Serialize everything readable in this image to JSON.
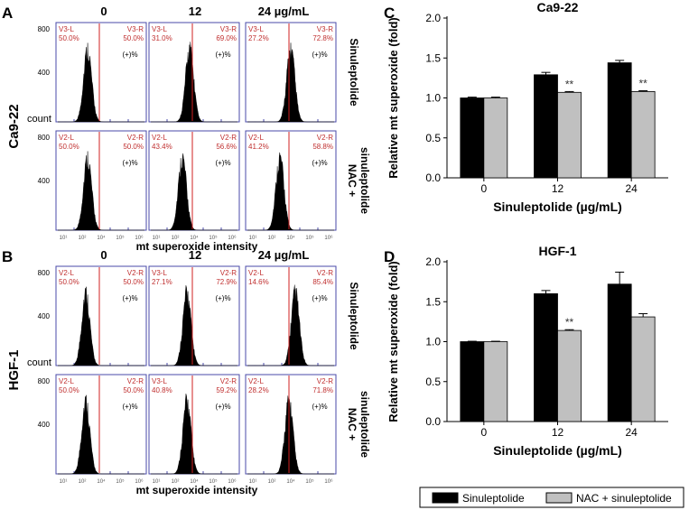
{
  "panels": {
    "A": "A",
    "B": "B",
    "C": "C",
    "D": "D"
  },
  "flow_common": {
    "count_label": "count",
    "xaxis_label": "mt superoxide intensity",
    "pos_label": "(+)%",
    "tick_400": "400",
    "tick_800": "800",
    "xticks": [
      "10¹",
      "10²",
      "10⁴",
      "10⁵",
      "10⁶"
    ],
    "dose_labels": [
      "0",
      "12",
      "24 µg/mL"
    ],
    "row_labels": [
      "Sinuleptolide",
      "NAC +",
      "sinuleptolide"
    ]
  },
  "flow_A": {
    "cell_line": "Ca9-22",
    "rows": [
      [
        {
          "l_label": "V3-L",
          "l_val": "50.0%",
          "r_label": "V3-R",
          "r_val": "50.0%",
          "peak": 0.35
        },
        {
          "l_label": "V3-L",
          "l_val": "31.0%",
          "r_label": "V3-R",
          "r_val": "69.0%",
          "peak": 0.45
        },
        {
          "l_label": "V3-L",
          "l_val": "27.2%",
          "r_label": "V3-R",
          "r_val": "72.8%",
          "peak": 0.5
        }
      ],
      [
        {
          "l_label": "V2-L",
          "l_val": "50.0%",
          "r_label": "V2-R",
          "r_val": "50.0%",
          "peak": 0.35
        },
        {
          "l_label": "V2-L",
          "l_val": "43.4%",
          "r_label": "V2-R",
          "r_val": "56.6%",
          "peak": 0.37
        },
        {
          "l_label": "V2-L",
          "l_val": "41.2%",
          "r_label": "V2-R",
          "r_val": "58.8%",
          "peak": 0.38
        }
      ]
    ]
  },
  "flow_B": {
    "cell_line": "HGF-1",
    "rows": [
      [
        {
          "l_label": "V2-L",
          "l_val": "50.0%",
          "r_label": "V2-R",
          "r_val": "50.0%",
          "peak": 0.33
        },
        {
          "l_label": "V3-L",
          "l_val": "27.1%",
          "r_label": "V2-R",
          "r_val": "72.9%",
          "peak": 0.42
        },
        {
          "l_label": "V2-L",
          "l_val": "14.6%",
          "r_label": "V2-R",
          "r_val": "85.4%",
          "peak": 0.55
        }
      ],
      [
        {
          "l_label": "V2-L",
          "l_val": "50.0%",
          "r_label": "V2-R",
          "r_val": "50.0%",
          "peak": 0.33
        },
        {
          "l_label": "V3-L",
          "l_val": "40.8%",
          "r_label": "V2-R",
          "r_val": "59.2%",
          "peak": 0.42
        },
        {
          "l_label": "V2-L",
          "l_val": "28.2%",
          "r_label": "V2-R",
          "r_val": "71.8%",
          "peak": 0.48
        }
      ]
    ]
  },
  "legend": {
    "items": [
      "Sinuleptolide",
      "NAC + sinuleptolide"
    ],
    "colors": [
      "#000000",
      "#c0c0c0"
    ]
  },
  "chart_data": [
    {
      "type": "bar",
      "panel": "C",
      "title": "Ca9-22",
      "xlabel": "Sinuleptolide (µg/mL)",
      "ylabel": "Relative mt superoxide (fold)",
      "categories": [
        "0",
        "12",
        "24"
      ],
      "ylim": [
        0,
        2.0
      ],
      "yticks": [
        "0.0",
        "0.5",
        "1.0",
        "1.5",
        "2.0"
      ],
      "series": [
        {
          "name": "Sinuleptolide",
          "values": [
            1.0,
            1.29,
            1.44
          ],
          "errors": [
            0.01,
            0.03,
            0.03
          ],
          "color": "#000000"
        },
        {
          "name": "NAC + sinuleptolide",
          "values": [
            1.0,
            1.07,
            1.08
          ],
          "errors": [
            0.01,
            0.01,
            0.01
          ],
          "color": "#c0c0c0"
        }
      ],
      "annotations": [
        "",
        "**",
        "**"
      ]
    },
    {
      "type": "bar",
      "panel": "D",
      "title": "HGF-1",
      "xlabel": "Sinuleptolide (µg/mL)",
      "ylabel": "Relative mt superoxide (fold)",
      "categories": [
        "0",
        "12",
        "24"
      ],
      "ylim": [
        0,
        2.0
      ],
      "yticks": [
        "0.0",
        "0.5",
        "1.0",
        "1.5",
        "2.0"
      ],
      "series": [
        {
          "name": "Sinuleptolide",
          "values": [
            1.0,
            1.6,
            1.72
          ],
          "errors": [
            0.005,
            0.04,
            0.15
          ],
          "color": "#000000"
        },
        {
          "name": "NAC + sinuleptolide",
          "values": [
            1.0,
            1.14,
            1.31
          ],
          "errors": [
            0.005,
            0.01,
            0.04
          ],
          "color": "#c0c0c0"
        }
      ],
      "annotations": [
        "",
        "**",
        ""
      ]
    }
  ]
}
